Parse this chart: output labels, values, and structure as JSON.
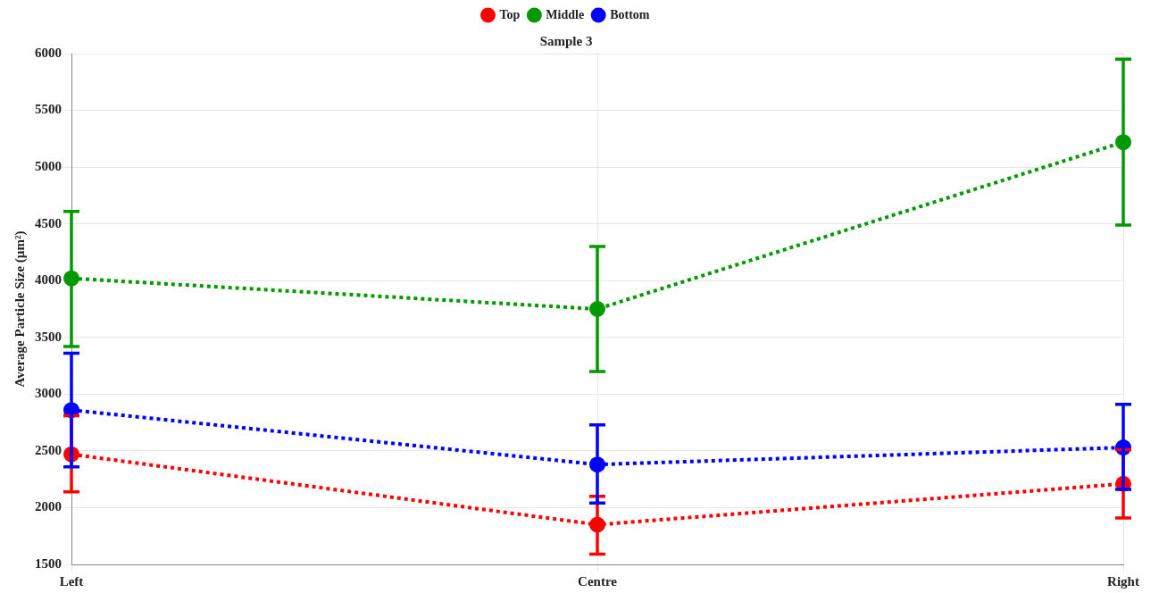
{
  "chart_data": {
    "type": "line",
    "title": "Sample 3",
    "ylabel": "Average Particle Size (µm²)",
    "categories": [
      "Left",
      "Centre",
      "Right"
    ],
    "series": [
      {
        "name": "Top",
        "color": "#ff0000",
        "values": [
          2470,
          1850,
          2210
        ],
        "errors": [
          [
            2140,
            2810
          ],
          [
            1590,
            2100
          ],
          [
            1910,
            2510
          ]
        ]
      },
      {
        "name": "Middle",
        "color": "#009900",
        "values": [
          4020,
          3750,
          5220
        ],
        "errors": [
          [
            3420,
            4610
          ],
          [
            3200,
            4300
          ],
          [
            4490,
            5950
          ]
        ]
      },
      {
        "name": "Bottom",
        "color": "#0000ff",
        "values": [
          2860,
          2380,
          2530
        ],
        "errors": [
          [
            2360,
            3360
          ],
          [
            2040,
            2730
          ],
          [
            2160,
            2910
          ]
        ]
      }
    ],
    "ylim": [
      1500,
      6000
    ],
    "yticks": [
      1500,
      2000,
      2500,
      3000,
      3500,
      4000,
      4500,
      5000,
      5500,
      6000
    ],
    "grid": true,
    "legend": "top",
    "marker": "circle",
    "line_style": "dotted"
  }
}
